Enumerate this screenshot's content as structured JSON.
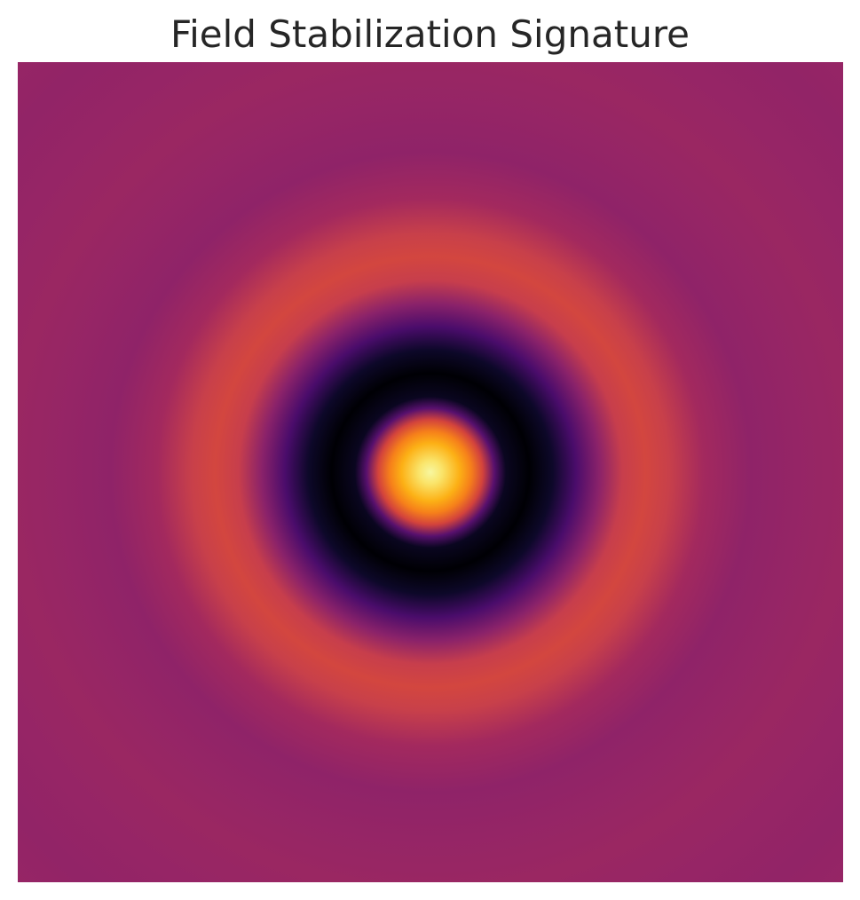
{
  "chart_data": {
    "type": "heatmap",
    "title": "Field Stabilization Signature",
    "xlabel": "",
    "ylabel": "",
    "axes_visible": false,
    "grid": false,
    "colormap": "inferno",
    "pattern": "concentric radial rings centered in the plot",
    "radial_profile": [
      {
        "r": 0.0,
        "value": 1.0,
        "color": "#f7f7a0"
      },
      {
        "r": 0.02,
        "value": 0.95,
        "color": "#fae46a"
      },
      {
        "r": 0.05,
        "value": 0.82,
        "color": "#fcb015"
      },
      {
        "r": 0.07,
        "value": 0.72,
        "color": "#f6801a"
      },
      {
        "r": 0.09,
        "value": 0.6,
        "color": "#d3433c"
      },
      {
        "r": 0.11,
        "value": 0.25,
        "color": "#58106e"
      },
      {
        "r": 0.13,
        "value": 0.05,
        "color": "#0a0620"
      },
      {
        "r": 0.17,
        "value": 0.0,
        "color": "#000004"
      },
      {
        "r": 0.21,
        "value": 0.06,
        "color": "#0d0829"
      },
      {
        "r": 0.25,
        "value": 0.22,
        "color": "#4a0c6b"
      },
      {
        "r": 0.29,
        "value": 0.4,
        "color": "#8a226a"
      },
      {
        "r": 0.33,
        "value": 0.55,
        "color": "#c73e4c"
      },
      {
        "r": 0.37,
        "value": 0.58,
        "color": "#d3463f"
      },
      {
        "r": 0.41,
        "value": 0.55,
        "color": "#c8404a"
      },
      {
        "r": 0.47,
        "value": 0.46,
        "color": "#a3295e"
      },
      {
        "r": 0.55,
        "value": 0.41,
        "color": "#8f2368"
      },
      {
        "r": 0.63,
        "value": 0.43,
        "color": "#952566"
      },
      {
        "r": 0.72,
        "value": 0.46,
        "color": "#9a2762"
      },
      {
        "r": 0.82,
        "value": 0.44,
        "color": "#962566"
      },
      {
        "r": 0.92,
        "value": 0.42,
        "color": "#922467"
      },
      {
        "r": 1.0,
        "value": 0.44,
        "color": "#962565"
      }
    ]
  }
}
